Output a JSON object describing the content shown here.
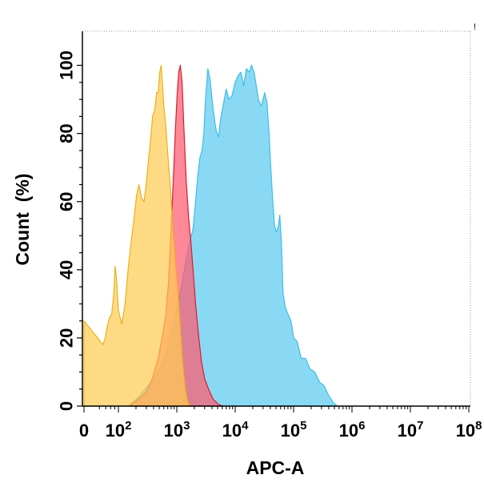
{
  "chart_data": {
    "type": "area",
    "xlabel": "APC-A",
    "ylabel": "Count  (%)",
    "x_scale": "biexponential-log",
    "xlim": [
      0,
      100000000
    ],
    "ylim": [
      0,
      110
    ],
    "y_ticks": [
      0,
      20,
      40,
      60,
      80,
      100
    ],
    "x_ticks": [
      {
        "value": 0,
        "base": "0",
        "exp": ""
      },
      {
        "value": 100,
        "base": "10",
        "exp": "2"
      },
      {
        "value": 1000,
        "base": "10",
        "exp": "3"
      },
      {
        "value": 10000,
        "base": "10",
        "exp": "4"
      },
      {
        "value": 100000,
        "base": "10",
        "exp": "5"
      },
      {
        "value": 1000000,
        "base": "10",
        "exp": "6"
      },
      {
        "value": 10000000,
        "base": "10",
        "exp": "7"
      },
      {
        "value": 100000000,
        "base": "10",
        "exp": "8"
      }
    ],
    "grid": false,
    "series": [
      {
        "color": "#3cbde8",
        "fill": "#5dcbf0",
        "points": [
          [
            150,
            0
          ],
          [
            230,
            3
          ],
          [
            320,
            6
          ],
          [
            450,
            9
          ],
          [
            650,
            15
          ],
          [
            900,
            25
          ],
          [
            1200,
            35
          ],
          [
            1550,
            46
          ],
          [
            1900,
            52
          ],
          [
            2100,
            60
          ],
          [
            2300,
            68
          ],
          [
            2500,
            73
          ],
          [
            2700,
            75
          ],
          [
            2900,
            80
          ],
          [
            3100,
            90
          ],
          [
            3400,
            99
          ],
          [
            3700,
            96
          ],
          [
            4200,
            87
          ],
          [
            4700,
            81
          ],
          [
            5200,
            79
          ],
          [
            5600,
            84
          ],
          [
            6200,
            88
          ],
          [
            7000,
            93
          ],
          [
            7800,
            90
          ],
          [
            8800,
            91
          ],
          [
            10000,
            95
          ],
          [
            11200,
            97
          ],
          [
            12500,
            98
          ],
          [
            14000,
            94
          ],
          [
            15500,
            99
          ],
          [
            17500,
            98
          ],
          [
            19000,
            100
          ],
          [
            21000,
            98
          ],
          [
            23000,
            94
          ],
          [
            25000,
            90
          ],
          [
            28000,
            88
          ],
          [
            32000,
            92
          ],
          [
            35000,
            89
          ],
          [
            38000,
            80
          ],
          [
            41000,
            69
          ],
          [
            44000,
            60
          ],
          [
            47000,
            53
          ],
          [
            51000,
            51
          ],
          [
            55000,
            53
          ],
          [
            58000,
            56
          ],
          [
            62000,
            48
          ],
          [
            66000,
            33
          ],
          [
            72000,
            29
          ],
          [
            80000,
            27
          ],
          [
            90000,
            25
          ],
          [
            100000,
            20
          ],
          [
            115000,
            19
          ],
          [
            135000,
            14
          ],
          [
            160000,
            14
          ],
          [
            190000,
            11
          ],
          [
            230000,
            10
          ],
          [
            280000,
            7
          ],
          [
            330000,
            6
          ],
          [
            400000,
            3
          ],
          [
            480000,
            1
          ],
          [
            560000,
            0
          ]
        ]
      },
      {
        "color": "#d61f2c",
        "fill": "#ff5a70",
        "points": [
          [
            150,
            0
          ],
          [
            220,
            2
          ],
          [
            300,
            4
          ],
          [
            380,
            8
          ],
          [
            480,
            14
          ],
          [
            560,
            20
          ],
          [
            640,
            26
          ],
          [
            720,
            36
          ],
          [
            800,
            52
          ],
          [
            880,
            68
          ],
          [
            950,
            82
          ],
          [
            1020,
            92
          ],
          [
            1080,
            98
          ],
          [
            1150,
            100
          ],
          [
            1230,
            95
          ],
          [
            1320,
            82
          ],
          [
            1450,
            66
          ],
          [
            1600,
            55
          ],
          [
            1750,
            48
          ],
          [
            1900,
            40
          ],
          [
            2100,
            30
          ],
          [
            2350,
            21
          ],
          [
            2650,
            13
          ],
          [
            3000,
            8
          ],
          [
            3500,
            5
          ],
          [
            4200,
            2
          ],
          [
            5200,
            0.5
          ],
          [
            6200,
            0
          ]
        ]
      },
      {
        "color": "#e8b21a",
        "fill": "#ffcc55",
        "points": [
          [
            0,
            25
          ],
          [
            10,
            21
          ],
          [
            16,
            20
          ],
          [
            22,
            19
          ],
          [
            30,
            18
          ],
          [
            38,
            20
          ],
          [
            45,
            23
          ],
          [
            55,
            26
          ],
          [
            65,
            27
          ],
          [
            75,
            33
          ],
          [
            82,
            41
          ],
          [
            90,
            37
          ],
          [
            100,
            28
          ],
          [
            115,
            24
          ],
          [
            130,
            30
          ],
          [
            150,
            42
          ],
          [
            165,
            48
          ],
          [
            185,
            55
          ],
          [
            205,
            62
          ],
          [
            225,
            65
          ],
          [
            250,
            61
          ],
          [
            275,
            60
          ],
          [
            300,
            65
          ],
          [
            330,
            73
          ],
          [
            360,
            79
          ],
          [
            385,
            85
          ],
          [
            420,
            87
          ],
          [
            450,
            92
          ],
          [
            480,
            92
          ],
          [
            510,
            98
          ],
          [
            540,
            100
          ],
          [
            570,
            94
          ],
          [
            600,
            88
          ],
          [
            650,
            82
          ],
          [
            700,
            74
          ],
          [
            770,
            65
          ],
          [
            850,
            53
          ],
          [
            940,
            43
          ],
          [
            1050,
            33
          ],
          [
            1150,
            23
          ],
          [
            1260,
            13
          ],
          [
            1380,
            6
          ],
          [
            1500,
            2
          ],
          [
            1650,
            0
          ]
        ]
      }
    ]
  },
  "decor": {
    "corner_mark": "!"
  }
}
